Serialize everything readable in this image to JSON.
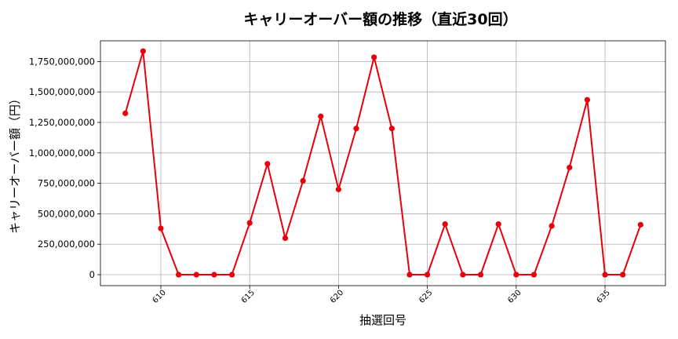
{
  "chart_data": {
    "type": "line",
    "title": "キャリーオーバー額の推移（直近30回）",
    "xlabel": "抽選回号",
    "ylabel": "キャリーオーバー額（円）",
    "xlim": [
      606.6,
      638.4
    ],
    "ylim": [
      -90000000,
      1920000000
    ],
    "x_ticks": [
      610,
      615,
      620,
      625,
      630,
      635
    ],
    "x_tick_labels": [
      "610",
      "615",
      "620",
      "625",
      "630",
      "635"
    ],
    "y_ticks": [
      0,
      250000000,
      500000000,
      750000000,
      1000000000,
      1250000000,
      1500000000,
      1750000000
    ],
    "y_tick_labels": [
      "0",
      "250,000,000",
      "500,000,000",
      "750,000,000",
      "1,000,000,000",
      "1,250,000,000",
      "1,500,000,000",
      "1,750,000,000"
    ],
    "grid": true,
    "series": [
      {
        "color": "#e8000b",
        "marker": "circle",
        "x": [
          608,
          609,
          610,
          611,
          612,
          613,
          614,
          615,
          616,
          617,
          618,
          619,
          620,
          621,
          622,
          623,
          624,
          625,
          626,
          627,
          628,
          629,
          630,
          631,
          632,
          633,
          634,
          635,
          636,
          637
        ],
        "values": [
          1325000000,
          1835000000,
          380000000,
          0,
          0,
          0,
          0,
          425000000,
          910000000,
          300000000,
          770000000,
          1300000000,
          700000000,
          1200000000,
          1785000000,
          1200000000,
          0,
          0,
          415000000,
          0,
          0,
          415000000,
          0,
          0,
          400000000,
          880000000,
          1435000000,
          0,
          0,
          410000000
        ]
      }
    ]
  }
}
